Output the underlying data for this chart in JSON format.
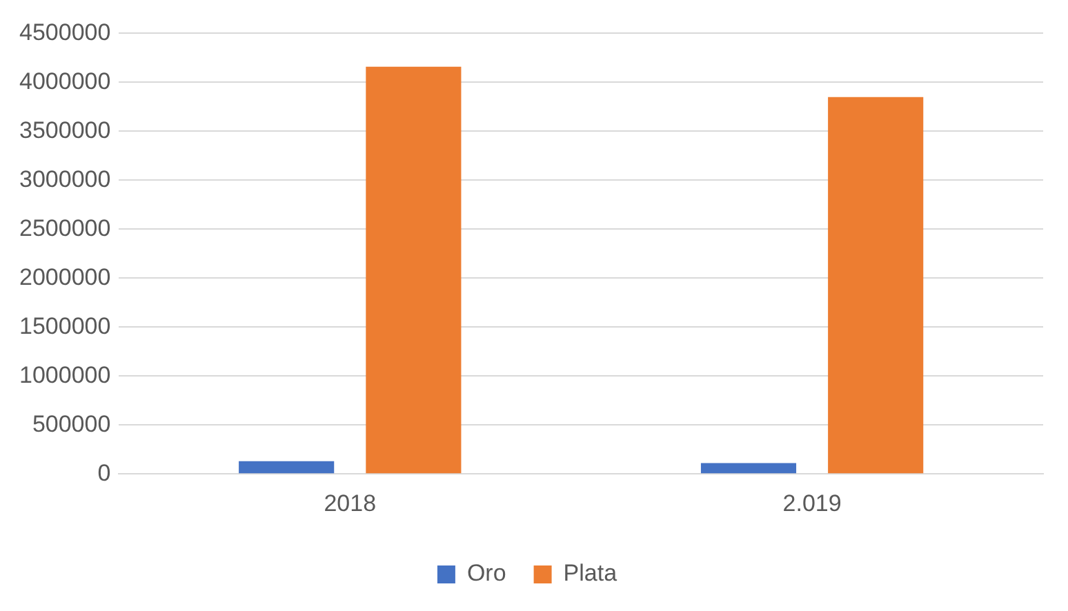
{
  "chart_data": {
    "type": "bar",
    "categories": [
      "2018",
      "2.019"
    ],
    "series": [
      {
        "name": "Oro",
        "color": "#4472c4",
        "values": [
          130000,
          110000
        ]
      },
      {
        "name": "Plata",
        "color": "#ed7d31",
        "values": [
          4160000,
          3850000
        ]
      }
    ],
    "ylim": [
      0,
      4500000
    ],
    "yticks": [
      0,
      500000,
      1000000,
      1500000,
      2000000,
      2500000,
      3000000,
      3500000,
      4000000,
      4500000
    ],
    "grid": "y",
    "legend": "bottom"
  }
}
